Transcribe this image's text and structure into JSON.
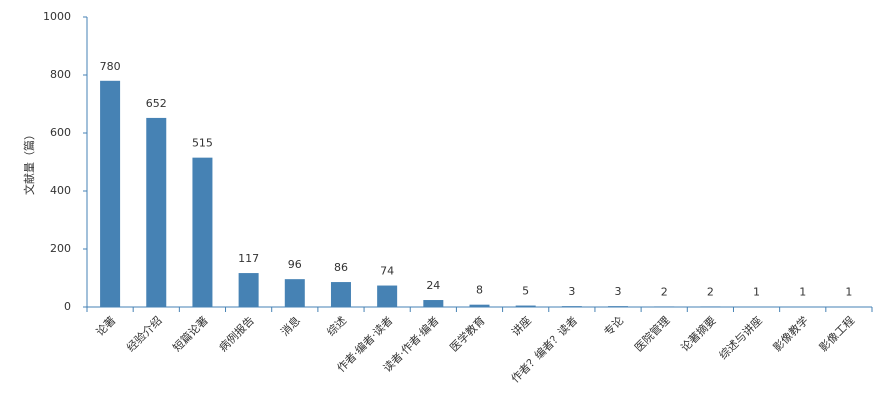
{
  "chart_data": {
    "type": "bar",
    "y_label": "文献量（篇）",
    "categories": [
      "论著",
      "经验介绍",
      "短篇论著",
      "病例报告",
      "消息",
      "综述",
      "作者·编者·读者",
      "读者·作者·编者",
      "医学教育",
      "讲座",
      "作者？编者？读者",
      "专论",
      "医院管理",
      "论著摘要",
      "综述与讲座",
      "影像教学",
      "影像工程"
    ],
    "values": [
      780,
      652,
      515,
      117,
      96,
      86,
      74,
      24,
      8,
      5,
      3,
      3,
      2,
      2,
      1,
      1,
      1
    ],
    "color": "#4682b4",
    "ylim": [
      0,
      1000
    ],
    "yticks": [
      0,
      200,
      400,
      600,
      800,
      1000
    ],
    "grid": false
  }
}
